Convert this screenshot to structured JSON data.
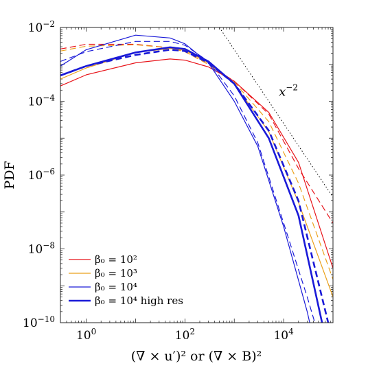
{
  "chart_data": {
    "type": "line",
    "xscale": "log",
    "yscale": "log",
    "xlim": [
      0.3,
      100000
    ],
    "ylim": [
      1e-10,
      0.01
    ],
    "grid": false,
    "legend_position": "bottom-left",
    "xlabel": "(∇ × u′)² or (∇ × B)²",
    "ylabel": "PDF",
    "x_ticks": [
      {
        "value": 1,
        "base": "10",
        "exp": "0"
      },
      {
        "value": 100,
        "base": "10",
        "exp": "2"
      },
      {
        "value": 10000,
        "base": "10",
        "exp": "4"
      }
    ],
    "y_ticks": [
      {
        "value": 0.01,
        "base": "10",
        "exp": "−2"
      },
      {
        "value": 0.0001,
        "base": "10",
        "exp": "−4"
      },
      {
        "value": 1e-06,
        "base": "10",
        "exp": "−6"
      },
      {
        "value": 1e-08,
        "base": "10",
        "exp": "−8"
      },
      {
        "value": 1e-10,
        "base": "10",
        "exp": "−10"
      }
    ],
    "legend": [
      {
        "label": "β₀ = 10²",
        "color": "#e8141a",
        "width": 1.2
      },
      {
        "label": "β₀ = 10³",
        "color": "#eba11b",
        "width": 1.2
      },
      {
        "label": "β₀ = 10⁴",
        "color": "#1a1ad8",
        "width": 1.2
      },
      {
        "label": "β₀ = 10⁴ high res",
        "color": "#1a1ad8",
        "width": 2.6
      }
    ],
    "annotation": {
      "text": "x",
      "sup": "−2",
      "x": 8000,
      "y": 0.00014
    },
    "reference_line": {
      "label": "x^-2",
      "x": [
        500,
        100000
      ],
      "y": [
        0.01,
        2.5e-07
      ],
      "color": "#000000",
      "style": "dotted"
    },
    "series": [
      {
        "group": "β₀ = 10²",
        "style": "solid",
        "color": "#e8141a",
        "width": 1.2,
        "x": [
          0.3,
          1,
          10,
          50,
          100,
          300,
          1000,
          5000,
          20000,
          100000
        ],
        "y": [
          0.00026,
          0.00052,
          0.0011,
          0.0014,
          0.0013,
          0.00085,
          0.00035,
          5e-05,
          2.2e-06,
          3e-09
        ]
      },
      {
        "group": "β₀ = 10²",
        "style": "dashed",
        "color": "#e8141a",
        "width": 1.2,
        "x": [
          0.3,
          1,
          10,
          50,
          100,
          300,
          1000,
          5000,
          20000,
          100000
        ],
        "y": [
          0.0026,
          0.0035,
          0.0035,
          0.0028,
          0.0022,
          0.001,
          0.00035,
          4.5e-05,
          1.5e-06,
          5e-08
        ]
      },
      {
        "group": "β₀ = 10³",
        "style": "solid",
        "color": "#eba11b",
        "width": 1.2,
        "x": [
          0.3,
          1,
          10,
          50,
          100,
          300,
          1000,
          5000,
          20000,
          100000
        ],
        "y": [
          0.0004,
          0.0008,
          0.0021,
          0.0027,
          0.0024,
          0.0011,
          0.0003,
          1.5e-05,
          1.8e-07,
          5e-10
        ]
      },
      {
        "group": "β₀ = 10³",
        "style": "dashed",
        "color": "#eba11b",
        "width": 1.2,
        "x": [
          0.3,
          1,
          10,
          50,
          100,
          300,
          1000,
          5000,
          20000,
          100000
        ],
        "y": [
          0.0023,
          0.0031,
          0.0034,
          0.0028,
          0.0022,
          0.001,
          0.00033,
          2.8e-05,
          6e-07,
          1.5e-09
        ]
      },
      {
        "group": "β₀ = 10⁴",
        "style": "solid",
        "color": "#1a1ad8",
        "width": 1.2,
        "x": [
          0.3,
          1,
          10,
          50,
          100,
          300,
          1000,
          3000,
          10000,
          30000,
          50000
        ],
        "y": [
          0.0009,
          0.0025,
          0.0062,
          0.0052,
          0.0036,
          0.0011,
          0.0001,
          6e-06,
          4e-08,
          2e-10,
          1e-11
        ]
      },
      {
        "group": "β₀ = 10⁴",
        "style": "dashed",
        "color": "#1a1ad8",
        "width": 1.2,
        "x": [
          0.3,
          1,
          10,
          50,
          100,
          300,
          1000,
          3000,
          10000,
          30000,
          50000
        ],
        "y": [
          0.0012,
          0.0022,
          0.0042,
          0.0042,
          0.0033,
          0.0012,
          0.00014,
          7.5e-06,
          5e-08,
          5e-10,
          5e-11
        ]
      },
      {
        "group": "β₀ = 10⁴ high res",
        "style": "solid",
        "color": "#1a1ad8",
        "width": 2.6,
        "x": [
          0.3,
          1,
          10,
          50,
          100,
          300,
          1000,
          5000,
          20000,
          60000
        ],
        "y": [
          0.0005,
          0.0009,
          0.0021,
          0.0029,
          0.0026,
          0.0012,
          0.0003,
          1e-05,
          8e-08,
          1e-10
        ]
      },
      {
        "group": "β₀ = 10⁴ high res",
        "style": "dashed",
        "color": "#1a1ad8",
        "width": 2.6,
        "x": [
          0.3,
          1,
          10,
          50,
          100,
          300,
          1000,
          5000,
          20000,
          80000
        ],
        "y": [
          0.0005,
          0.0009,
          0.0018,
          0.0025,
          0.0023,
          0.0011,
          0.0003,
          1.6e-05,
          2e-07,
          1e-10
        ]
      }
    ]
  }
}
